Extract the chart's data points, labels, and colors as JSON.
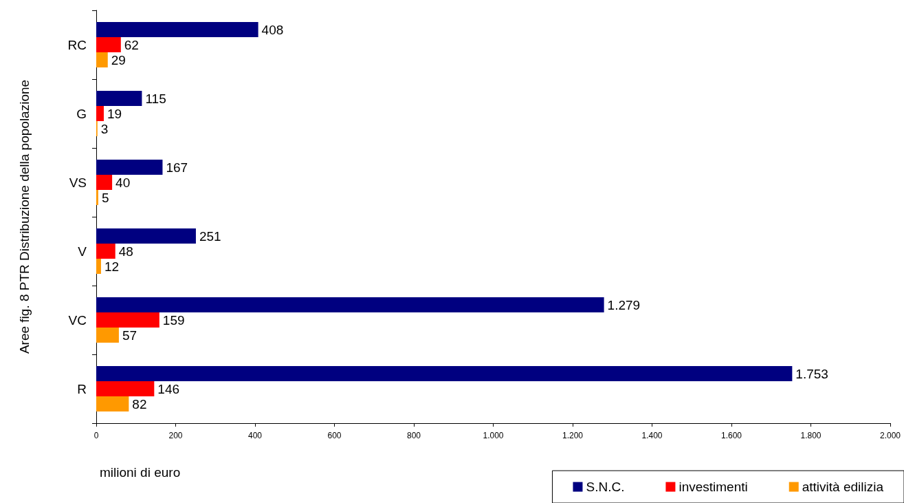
{
  "chart_data": {
    "type": "bar",
    "orientation": "horizontal",
    "ylabel": "Aree fig. 8 PTR Distribuzione della popolazione",
    "xlabel": "milioni di euro",
    "categories": [
      "RC",
      "G",
      "VS",
      "V",
      "VC",
      "R"
    ],
    "series": [
      {
        "name": "S.N.C.",
        "color": "#000080",
        "values": [
          408,
          115,
          167,
          251,
          1279,
          1753
        ],
        "value_labels": [
          "408",
          "115",
          "167",
          "251",
          "1.279",
          "1.753"
        ]
      },
      {
        "name": "investimenti",
        "color": "#ff0000",
        "values": [
          62,
          19,
          40,
          48,
          159,
          146
        ],
        "value_labels": [
          "62",
          "19",
          "40",
          "48",
          "159",
          "146"
        ]
      },
      {
        "name": "attività edilizia",
        "color": "#ff9900",
        "values": [
          29,
          3,
          5,
          12,
          57,
          82
        ],
        "value_labels": [
          "29",
          "3",
          "5",
          "12",
          "57",
          "82"
        ]
      }
    ],
    "xlim": [
      0,
      2000
    ],
    "xticks": [
      0,
      200,
      400,
      600,
      800,
      {
        "value": 1000,
        "label": "1.000"
      },
      {
        "value": 1200,
        "label": "1.200"
      },
      {
        "value": 1400,
        "label": "1.400"
      },
      {
        "value": 1600,
        "label": "1.600"
      },
      {
        "value": 1800,
        "label": "1.800"
      },
      {
        "value": 2000,
        "label": "2.000"
      }
    ],
    "legend": "bottom right",
    "grid": false
  }
}
